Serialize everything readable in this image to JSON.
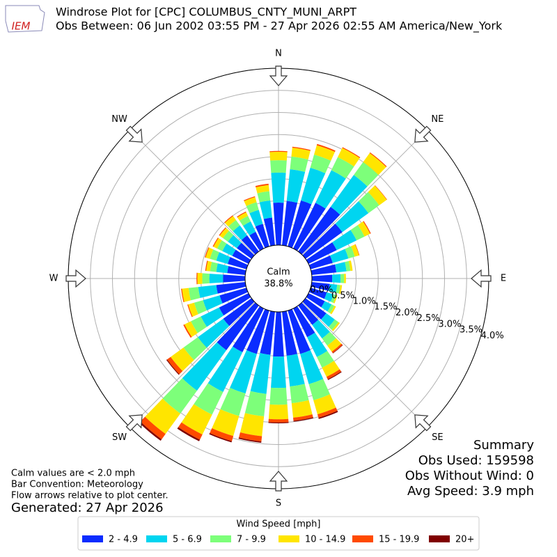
{
  "chart_data": {
    "type": "windrose",
    "title": "Windrose Plot for [CPC] COLUMBUS_CNTY_MUNI_ARPT",
    "subtitle": "Obs Between: 06 Jun 2002 03:55 PM - 27 Apr 2026 02:55 AM America/New_York",
    "logo_text": "IEM",
    "calm_label": "Calm",
    "calm_value": "38.8%",
    "summary": [
      "Summary",
      "Obs Used: 159598",
      "Obs Without Wind: 0",
      "Avg Speed: 3.9 mph"
    ],
    "notes": [
      "Calm values are < 2.0 mph",
      "Bar Convention: Meteorology",
      "Flow arrows relative to plot center."
    ],
    "generated": "Generated: 27 Apr 2026",
    "legend_title": "Wind Speed [mph]",
    "x": [
      0,
      10,
      20,
      30,
      40,
      50,
      60,
      70,
      80,
      90,
      100,
      110,
      120,
      130,
      140,
      150,
      160,
      170,
      180,
      190,
      200,
      210,
      220,
      230,
      240,
      250,
      260,
      270,
      280,
      290,
      300,
      310,
      320,
      330,
      340,
      350
    ],
    "xlim": [
      0,
      360
    ],
    "xticks": [
      {
        "value": 0,
        "label": "N"
      },
      {
        "value": 45,
        "label": "NE"
      },
      {
        "value": 90,
        "label": "E"
      },
      {
        "value": 135,
        "label": "SE"
      },
      {
        "value": 180,
        "label": "S"
      },
      {
        "value": 225,
        "label": "SW"
      },
      {
        "value": 270,
        "label": "W"
      },
      {
        "value": 315,
        "label": "NW"
      }
    ],
    "ylim": [
      0,
      4
    ],
    "yticks": [
      {
        "value": 0,
        "label": "0.0%"
      },
      {
        "value": 0.5,
        "label": "0.5%"
      },
      {
        "value": 1,
        "label": "1.0%"
      },
      {
        "value": 1.5,
        "label": "1.5%"
      },
      {
        "value": 2,
        "label": "2.0%"
      },
      {
        "value": 2.5,
        "label": "2.5%"
      },
      {
        "value": 3,
        "label": "3.0%"
      },
      {
        "value": 3.5,
        "label": "3.5%"
      },
      {
        "value": 4,
        "label": "4.0%"
      }
    ],
    "grid": true,
    "series": [
      {
        "name": "2 - 4.9",
        "color": "#0a2cff",
        "values": [
          0.96,
          1.01,
          1.08,
          1.15,
          1.25,
          1.03,
          0.71,
          0.52,
          0.56,
          0.46,
          0.41,
          0.38,
          0.41,
          0.58,
          0.54,
          0.72,
          1.02,
          1.0,
          1.01,
          0.98,
          1.02,
          1.1,
          1.25,
          0.79,
          0.74,
          0.63,
          0.66,
          0.5,
          0.41,
          0.44,
          0.41,
          0.41,
          0.45,
          0.42,
          0.53,
          0.63
        ]
      },
      {
        "name": "5 - 6.9",
        "color": "#00d5f0",
        "values": [
          0.68,
          0.72,
          0.77,
          0.82,
          0.89,
          0.73,
          0.5,
          0.37,
          0.23,
          0.19,
          0.17,
          0.16,
          0.17,
          0.24,
          0.38,
          0.5,
          0.71,
          0.7,
          0.71,
          0.89,
          0.93,
          1.0,
          1.13,
          0.71,
          0.46,
          0.39,
          0.41,
          0.31,
          0.25,
          0.27,
          0.25,
          0.25,
          0.28,
          0.26,
          0.33,
          0.39
        ]
      },
      {
        "name": "7 - 9.9",
        "color": "#7dff7a",
        "values": [
          0.28,
          0.29,
          0.31,
          0.33,
          0.36,
          0.3,
          0.2,
          0.15,
          0.09,
          0.08,
          0.07,
          0.06,
          0.07,
          0.1,
          0.2,
          0.27,
          0.38,
          0.38,
          0.38,
          0.51,
          0.53,
          0.57,
          0.64,
          0.4,
          0.25,
          0.21,
          0.22,
          0.16,
          0.14,
          0.15,
          0.13,
          0.14,
          0.15,
          0.14,
          0.18,
          0.21
        ]
      },
      {
        "name": "10 - 14.9",
        "color": "#ffe500",
        "values": [
          0.19,
          0.2,
          0.22,
          0.23,
          0.25,
          0.21,
          0.14,
          0.1,
          0.05,
          0.04,
          0.04,
          0.03,
          0.04,
          0.04,
          0.17,
          0.23,
          0.33,
          0.33,
          0.33,
          0.45,
          0.47,
          0.5,
          0.57,
          0.36,
          0.16,
          0.14,
          0.15,
          0.11,
          0.09,
          0.1,
          0.09,
          0.09,
          0.11,
          0.09,
          0.12,
          0.14
        ]
      },
      {
        "name": "15 - 19.9",
        "color": "#ff4a00",
        "values": [
          0.02,
          0.02,
          0.03,
          0.02,
          0.02,
          0.01,
          0.02,
          0.01,
          0,
          0,
          0,
          0,
          0,
          0,
          0.04,
          0.06,
          0.08,
          0.07,
          0.07,
          0.12,
          0.12,
          0.13,
          0.15,
          0.1,
          0.03,
          0.02,
          0.02,
          0.02,
          0.02,
          0.02,
          0.02,
          0.02,
          0.02,
          0.02,
          0.02,
          0.03
        ]
      },
      {
        "name": "20+",
        "color": "#800000",
        "values": [
          0,
          0,
          0,
          0,
          0,
          0,
          0,
          0,
          0,
          0,
          0,
          0,
          0,
          0,
          0.01,
          0.02,
          0.03,
          0.02,
          0.02,
          0.03,
          0.03,
          0.04,
          0.04,
          0.02,
          0,
          0,
          0,
          0,
          0,
          0,
          0,
          0,
          0,
          0,
          0,
          0
        ]
      }
    ]
  }
}
